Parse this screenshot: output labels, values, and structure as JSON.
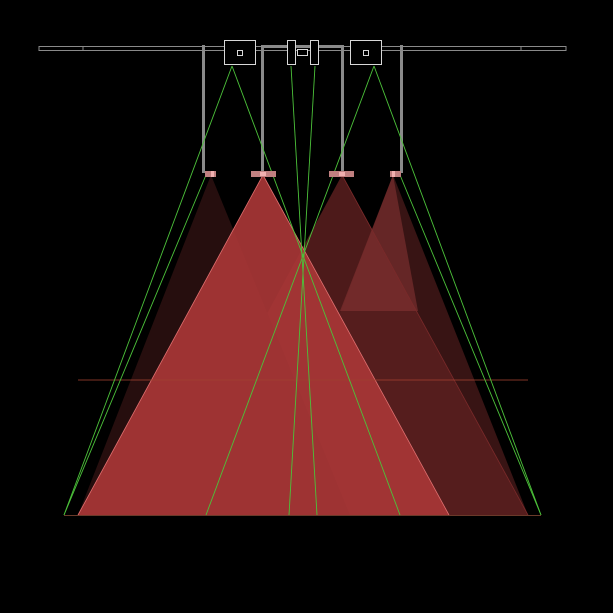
{
  "view": {
    "background": "#000000"
  },
  "colors": {
    "beam_bright": "#c23c3c",
    "beam_mid": "#8a3030",
    "beam_dark": "#5a1e1e",
    "beam_outline": "#e07070",
    "sightline": "#4cc23a",
    "structure": "#8a8a8a",
    "structure_light": "#d8d8d8",
    "ground_line": "#a04030",
    "lamp_body": "#c08080",
    "lamp_light": "#f0b0b0"
  },
  "diagram": {
    "elements": [
      "ceiling-rail",
      "hanging-rod",
      "projector-housing",
      "light-fixture",
      "light-beam",
      "sightline",
      "floor-line",
      "horizon-line"
    ]
  }
}
